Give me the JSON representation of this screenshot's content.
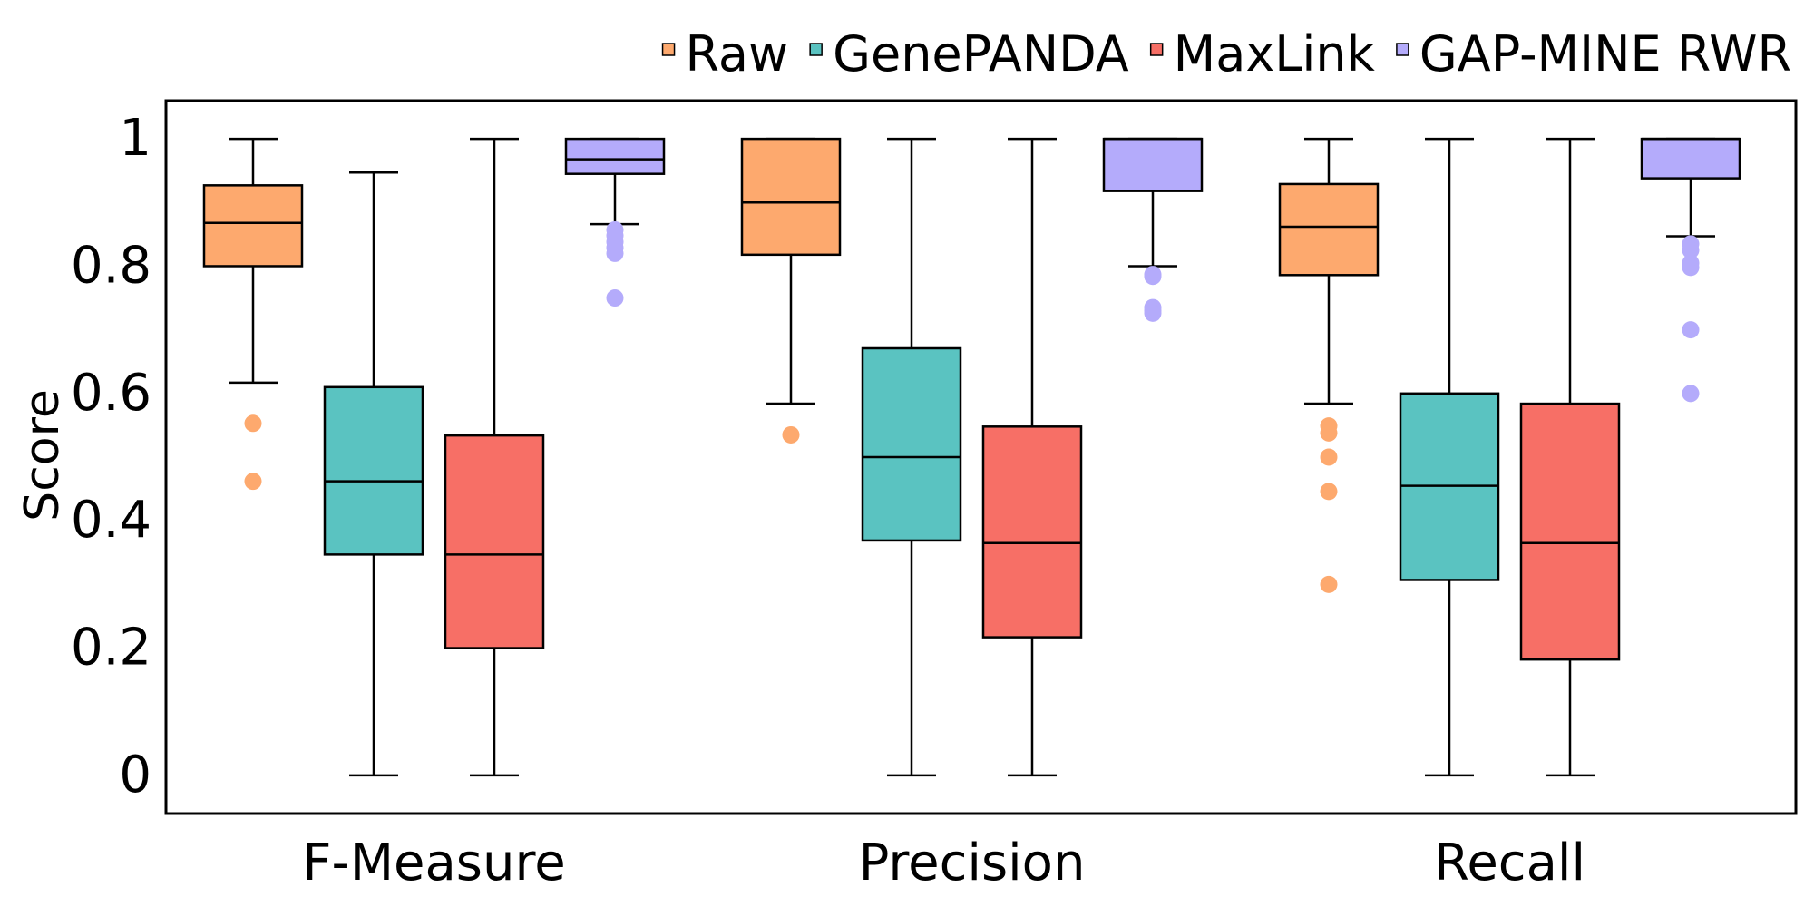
{
  "chart_data": {
    "type": "box",
    "title": "",
    "xlabel": "",
    "ylabel": "Score",
    "ylim": [
      -0.06,
      1.06
    ],
    "yticks": [
      {
        "value": 0,
        "label": "0"
      },
      {
        "value": 0.2,
        "label": "0.2"
      },
      {
        "value": 0.4,
        "label": "0.4"
      },
      {
        "value": 0.6,
        "label": "0.6"
      },
      {
        "value": 0.8,
        "label": "0.8"
      },
      {
        "value": 1,
        "label": "1"
      }
    ],
    "categories": [
      "F-Measure",
      "Precision",
      "Recall"
    ],
    "grid": false,
    "legend_position": "top-right, outside plot",
    "series": [
      {
        "name": "Raw",
        "color": "#FDA96E",
        "boxes": [
          {
            "whisker_low": 0.617,
            "q1": 0.8,
            "median": 0.868,
            "q3": 0.927,
            "whisker_high": 1.0,
            "outliers": [
              0.553,
              0.462
            ]
          },
          {
            "whisker_low": 0.584,
            "q1": 0.818,
            "median": 0.9,
            "q3": 1.0,
            "whisker_high": 1.0,
            "outliers": [
              0.535
            ]
          },
          {
            "whisker_low": 0.584,
            "q1": 0.786,
            "median": 0.862,
            "q3": 0.929,
            "whisker_high": 1.0,
            "outliers": [
              0.549,
              0.538,
              0.5,
              0.446,
              0.3
            ]
          }
        ]
      },
      {
        "name": "GenePANDA",
        "color": "#5AC3C1",
        "boxes": [
          {
            "whisker_low": 0.0,
            "q1": 0.347,
            "median": 0.462,
            "q3": 0.61,
            "whisker_high": 0.947,
            "outliers": []
          },
          {
            "whisker_low": 0.0,
            "q1": 0.369,
            "median": 0.5,
            "q3": 0.671,
            "whisker_high": 1.0,
            "outliers": []
          },
          {
            "whisker_low": 0.0,
            "q1": 0.307,
            "median": 0.455,
            "q3": 0.6,
            "whisker_high": 1.0,
            "outliers": []
          }
        ]
      },
      {
        "name": "MaxLink",
        "color": "#F76F66",
        "boxes": [
          {
            "whisker_low": 0.0,
            "q1": 0.2,
            "median": 0.347,
            "q3": 0.534,
            "whisker_high": 1.0,
            "outliers": []
          },
          {
            "whisker_low": 0.0,
            "q1": 0.217,
            "median": 0.365,
            "q3": 0.548,
            "whisker_high": 1.0,
            "outliers": []
          },
          {
            "whisker_low": 0.0,
            "q1": 0.182,
            "median": 0.365,
            "q3": 0.584,
            "whisker_high": 1.0,
            "outliers": []
          }
        ]
      },
      {
        "name": "GAP-MINE RWR",
        "color": "#B4ABFB",
        "boxes": [
          {
            "whisker_low": 0.866,
            "q1": 0.945,
            "median": 0.968,
            "q3": 1.0,
            "whisker_high": 1.0,
            "outliers": [
              0.857,
              0.848,
              0.838,
              0.829,
              0.82,
              0.75
            ]
          },
          {
            "whisker_low": 0.8,
            "q1": 0.918,
            "median": 1.0,
            "q3": 1.0,
            "whisker_high": 1.0,
            "outliers": [
              0.787,
              0.784,
              0.735,
              0.73,
              0.726
            ]
          },
          {
            "whisker_low": 0.847,
            "q1": 0.938,
            "median": 1.0,
            "q3": 1.0,
            "whisker_high": 1.0,
            "outliers": [
              0.835,
              0.825,
              0.805,
              0.798,
              0.7,
              0.6
            ]
          }
        ]
      }
    ]
  }
}
